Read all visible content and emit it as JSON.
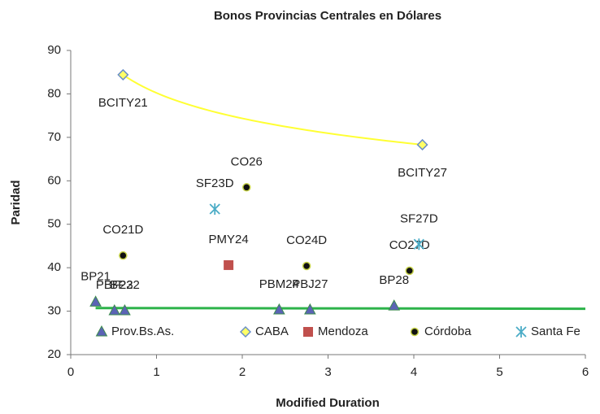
{
  "chart_data": {
    "type": "scatter",
    "title": "Bonos Provincias Centrales en Dólares",
    "x_label": "Modified Duration",
    "y_label": "Paridad",
    "xlim": [
      0,
      6
    ],
    "xticks": [
      0,
      1,
      2,
      3,
      4,
      5,
      6
    ],
    "ylim": [
      20,
      90
    ],
    "yticks": [
      20,
      30,
      40,
      50,
      60,
      70,
      80,
      90
    ],
    "grid": false,
    "legend": "bottom",
    "series": [
      {
        "name": "Prov.Bs.As.",
        "color": "#5b63b5",
        "marker": "triangle",
        "trendline": "linear",
        "trend_color": "#2db34a",
        "x": [
          0.29,
          0.51,
          0.63,
          2.43,
          2.79,
          3.77
        ],
        "values": [
          32.1,
          30.1,
          30.1,
          30.3,
          30.3,
          31.2
        ],
        "labels": [
          "BP21",
          "PBF23",
          "BP22",
          "PBM24",
          "PBJ27",
          "BP28"
        ]
      },
      {
        "name": "CABA",
        "color": "#ffff66",
        "marker": "diamond",
        "trendline": "log",
        "trend_color": "#ffff33",
        "x": [
          0.61,
          4.1
        ],
        "values": [
          84.4,
          68.3
        ],
        "labels": [
          "BCITY21",
          "BCITY27"
        ]
      },
      {
        "name": "Mendoza",
        "color": "#c0504d",
        "marker": "square",
        "x": [
          1.84
        ],
        "values": [
          40.6
        ],
        "labels": [
          "PMY24"
        ]
      },
      {
        "name": "Córdoba",
        "color": "#111111",
        "marker": "circle",
        "x": [
          0.61,
          2.05,
          2.75,
          3.95
        ],
        "values": [
          42.8,
          58.5,
          40.4,
          39.3
        ],
        "labels": [
          "CO21D",
          "CO26",
          "CO24D",
          "CO27D"
        ]
      },
      {
        "name": "Santa Fe",
        "color": "#4bacc6",
        "marker": "asterisk",
        "x": [
          1.68,
          4.06
        ],
        "values": [
          53.5,
          45.4
        ],
        "labels": [
          "SF23D",
          "SF27D"
        ]
      }
    ]
  }
}
